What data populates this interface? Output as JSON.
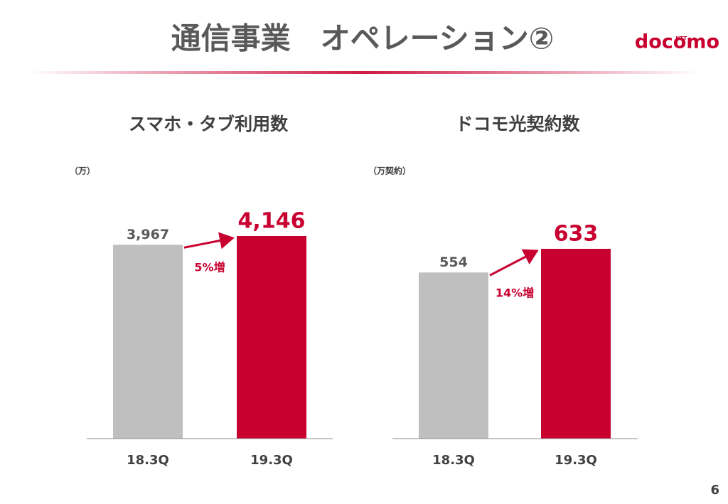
{
  "header": {
    "title": "通信事業　オペレーション②",
    "logo": "docomo",
    "logo_mark": "NTT"
  },
  "page_number": "6",
  "chart_data": [
    {
      "type": "bar",
      "title": "スマホ・タブ利用数",
      "unit_label": "（万）",
      "categories": [
        "18.3Q",
        "19.3Q"
      ],
      "values": [
        3967,
        4146
      ],
      "value_labels": [
        "3,967",
        "4,146"
      ],
      "colors": [
        "#bfbfbf",
        "#c8002f"
      ],
      "annotation": "5%増"
    },
    {
      "type": "bar",
      "title": "ドコモ光契約数",
      "unit_label": "（万契約）",
      "categories": [
        "18.3Q",
        "19.3Q"
      ],
      "values": [
        554,
        633
      ],
      "value_labels": [
        "554",
        "633"
      ],
      "colors": [
        "#bfbfbf",
        "#c8002f"
      ],
      "annotation": "14%増"
    }
  ]
}
